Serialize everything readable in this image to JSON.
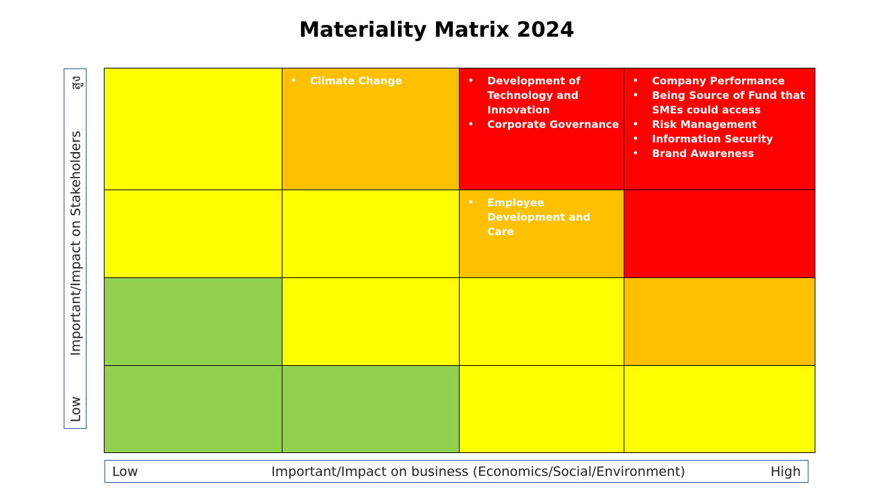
{
  "title": "Materiality Matrix 2024",
  "colors": {
    "green": "#92d050",
    "yellow": "#ffff00",
    "orange": "#ffc000",
    "red": "#ff0000"
  },
  "y_axis": {
    "low": "Low",
    "label": "Important/Impact on Stakeholders",
    "high": "สูง"
  },
  "x_axis": {
    "low": "Low",
    "label": "Important/Impact on business (Economics/Social/Environment)",
    "high": "High"
  },
  "rows": [
    {
      "cells": [
        {
          "color": "yellow",
          "items": []
        },
        {
          "color": "orange",
          "items": [
            "Climate Change"
          ]
        },
        {
          "color": "red",
          "items": [
            "Development of Technology  and Innovation",
            "Corporate Governance"
          ]
        },
        {
          "color": "red",
          "items": [
            "Company Performance",
            " Being Source of Fund that SMEs could access",
            "Risk Management",
            "Information Security",
            "Brand Awareness"
          ]
        }
      ]
    },
    {
      "cells": [
        {
          "color": "yellow",
          "items": []
        },
        {
          "color": "yellow",
          "items": []
        },
        {
          "color": "orange",
          "items": [
            "Employee Development and Care"
          ]
        },
        {
          "color": "red",
          "items": []
        }
      ]
    },
    {
      "cells": [
        {
          "color": "green",
          "items": []
        },
        {
          "color": "yellow",
          "items": []
        },
        {
          "color": "yellow",
          "items": []
        },
        {
          "color": "orange",
          "items": []
        }
      ]
    },
    {
      "cells": [
        {
          "color": "green",
          "items": []
        },
        {
          "color": "green",
          "items": []
        },
        {
          "color": "yellow",
          "items": []
        },
        {
          "color": "yellow",
          "items": []
        }
      ]
    }
  ]
}
